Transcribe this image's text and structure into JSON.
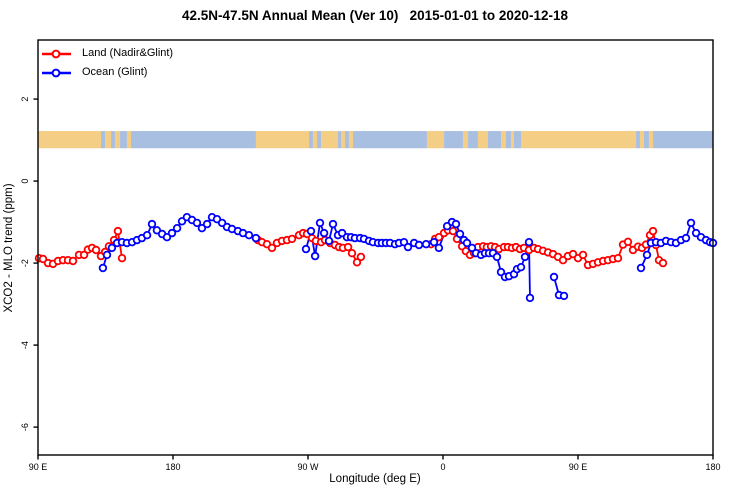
{
  "chart_data": {
    "type": "line",
    "title": "42.5N-47.5N Annual Mean (Ver 10)   2015-01-01 to 2020-12-18",
    "xlabel": "Longitude (deg E)",
    "ylabel": "XCO2 - MLO trend (ppm)",
    "x_axis": {
      "range_deg_along_axis": [
        0,
        450
      ],
      "ticks": [
        {
          "value": 0,
          "label": "90 E"
        },
        {
          "value": 90,
          "label": "180"
        },
        {
          "value": 180,
          "label": "90 W"
        },
        {
          "value": 270,
          "label": "0"
        },
        {
          "value": 360,
          "label": "90 E"
        },
        {
          "value": 450,
          "label": "180"
        }
      ]
    },
    "y_axis": {
      "range": [
        -6.68,
        3.44
      ],
      "ticks": [
        {
          "value": 2,
          "label": "2"
        },
        {
          "value": 0,
          "label": "0"
        },
        {
          "value": -2,
          "label": "-2"
        },
        {
          "value": -4,
          "label": "-4"
        },
        {
          "value": -6,
          "label": "-6"
        }
      ]
    },
    "axis_color": "#000000",
    "series": [
      {
        "name": "Land (Nadir&Glint)",
        "color": "#ff0000",
        "marker": "open-circle",
        "segments": [
          [
            [
              0.7,
              -1.88
            ],
            [
              3.3,
              -1.9
            ],
            [
              6.7,
              -2.0
            ],
            [
              10,
              -2.02
            ],
            [
              13.3,
              -1.95
            ],
            [
              16.7,
              -1.93
            ],
            [
              20,
              -1.93
            ],
            [
              23.3,
              -1.95
            ],
            [
              27.3,
              -1.8
            ],
            [
              30.7,
              -1.8
            ],
            [
              33.3,
              -1.67
            ],
            [
              36,
              -1.63
            ],
            [
              38.7,
              -1.68
            ],
            [
              42,
              -1.83
            ],
            [
              44.7,
              -1.73
            ],
            [
              47.3,
              -1.59
            ],
            [
              50.7,
              -1.44
            ],
            [
              53.3,
              -1.22
            ],
            [
              56,
              -1.88
            ]
          ],
          [
            [
              146.7,
              -1.44
            ],
            [
              149.3,
              -1.49
            ],
            [
              152.7,
              -1.54
            ],
            [
              156,
              -1.63
            ],
            [
              159.3,
              -1.51
            ],
            [
              162.7,
              -1.46
            ],
            [
              166,
              -1.44
            ],
            [
              169.3,
              -1.41
            ],
            [
              174,
              -1.32
            ],
            [
              176.7,
              -1.27
            ],
            [
              179.3,
              -1.29
            ],
            [
              182.7,
              -1.39
            ],
            [
              185.3,
              -1.46
            ],
            [
              188.7,
              -1.49
            ],
            [
              191.3,
              -1.44
            ],
            [
              194.7,
              -1.51
            ],
            [
              198,
              -1.56
            ],
            [
              200.7,
              -1.61
            ],
            [
              203.3,
              -1.63
            ],
            [
              206.7,
              -1.61
            ],
            [
              209.3,
              -1.76
            ],
            [
              212.7,
              -1.98
            ],
            [
              215.3,
              -1.85
            ]
          ],
          [
            [
              262,
              -1.54
            ],
            [
              264.7,
              -1.41
            ],
            [
              267.3,
              -1.37
            ],
            [
              270.7,
              -1.27
            ],
            [
              273.3,
              -1.2
            ],
            [
              276.7,
              -1.22
            ],
            [
              279.3,
              -1.41
            ],
            [
              282.7,
              -1.59
            ],
            [
              285.3,
              -1.71
            ],
            [
              288,
              -1.8
            ],
            [
              290.7,
              -1.76
            ],
            [
              293.3,
              -1.61
            ],
            [
              296.7,
              -1.59
            ],
            [
              299.3,
              -1.61
            ],
            [
              302,
              -1.59
            ],
            [
              304.7,
              -1.61
            ],
            [
              307.3,
              -1.66
            ],
            [
              310.7,
              -1.61
            ],
            [
              313.3,
              -1.61
            ],
            [
              316,
              -1.63
            ],
            [
              318.7,
              -1.61
            ],
            [
              321.3,
              -1.66
            ],
            [
              324,
              -1.63
            ],
            [
              327.3,
              -1.68
            ],
            [
              330.7,
              -1.63
            ],
            [
              333.3,
              -1.66
            ],
            [
              336.7,
              -1.7
            ],
            [
              340,
              -1.74
            ],
            [
              343.3,
              -1.78
            ],
            [
              346.7,
              -1.85
            ],
            [
              350,
              -1.93
            ],
            [
              353.3,
              -1.83
            ],
            [
              356.7,
              -1.78
            ],
            [
              360,
              -1.88
            ],
            [
              363.3,
              -1.8
            ],
            [
              366.7,
              -2.05
            ],
            [
              370,
              -2.02
            ],
            [
              373.3,
              -1.98
            ],
            [
              376.7,
              -1.95
            ],
            [
              380,
              -1.93
            ],
            [
              383.3,
              -1.9
            ],
            [
              386.7,
              -1.88
            ],
            [
              390,
              -1.55
            ],
            [
              393.3,
              -1.48
            ],
            [
              396.7,
              -1.68
            ],
            [
              400,
              -1.6
            ],
            [
              402.7,
              -1.63
            ],
            [
              405.3,
              -1.55
            ],
            [
              408,
              -1.32
            ],
            [
              410,
              -1.22
            ],
            [
              412,
              -1.56
            ],
            [
              414,
              -1.93
            ],
            [
              416.7,
              -2.0
            ]
          ]
        ]
      },
      {
        "name": "Ocean (Glint)",
        "color": "#0000ff",
        "marker": "open-circle",
        "segments": [
          [
            [
              43.3,
              -2.12
            ],
            [
              46,
              -1.8
            ],
            [
              49.3,
              -1.63
            ],
            [
              52.7,
              -1.51
            ],
            [
              56,
              -1.49
            ],
            [
              59.3,
              -1.51
            ],
            [
              62.7,
              -1.49
            ],
            [
              66,
              -1.44
            ],
            [
              69.3,
              -1.39
            ],
            [
              72.7,
              -1.32
            ],
            [
              76,
              -1.05
            ],
            [
              79.3,
              -1.2
            ],
            [
              82.7,
              -1.29
            ],
            [
              86,
              -1.37
            ],
            [
              89.3,
              -1.27
            ],
            [
              92.7,
              -1.15
            ],
            [
              96,
              -0.98
            ],
            [
              99.3,
              -0.88
            ],
            [
              102.7,
              -0.95
            ],
            [
              106,
              -1.02
            ],
            [
              109.3,
              -1.15
            ],
            [
              112.7,
              -1.05
            ],
            [
              116,
              -0.88
            ],
            [
              119.3,
              -0.93
            ],
            [
              122.7,
              -1.02
            ],
            [
              126,
              -1.12
            ],
            [
              129.3,
              -1.17
            ],
            [
              133.3,
              -1.22
            ],
            [
              136.7,
              -1.27
            ],
            [
              140.7,
              -1.32
            ],
            [
              145.3,
              -1.39
            ]
          ],
          [
            [
              178.7,
              -1.66
            ],
            [
              182,
              -1.22
            ],
            [
              184.7,
              -1.83
            ],
            [
              188,
              -1.02
            ],
            [
              190.7,
              -1.27
            ],
            [
              194,
              -1.46
            ],
            [
              196.7,
              -1.05
            ],
            [
              200,
              -1.32
            ],
            [
              202.7,
              -1.27
            ],
            [
              206,
              -1.37
            ],
            [
              208.7,
              -1.37
            ],
            [
              211.3,
              -1.39
            ],
            [
              214.7,
              -1.39
            ],
            [
              217.3,
              -1.41
            ],
            [
              220.7,
              -1.46
            ],
            [
              223.3,
              -1.49
            ],
            [
              226.7,
              -1.51
            ],
            [
              229.3,
              -1.51
            ],
            [
              232,
              -1.51
            ],
            [
              234.7,
              -1.51
            ],
            [
              238,
              -1.54
            ],
            [
              240.7,
              -1.51
            ],
            [
              244,
              -1.49
            ],
            [
              246.7,
              -1.61
            ],
            [
              250.7,
              -1.51
            ],
            [
              254,
              -1.56
            ],
            [
              258.7,
              -1.54
            ],
            [
              264,
              -1.49
            ],
            [
              267.3,
              -1.63
            ],
            [
              272.7,
              -1.1
            ],
            [
              276,
              -1.0
            ],
            [
              278.7,
              -1.05
            ],
            [
              281.3,
              -1.29
            ],
            [
              284,
              -1.44
            ],
            [
              286,
              -1.51
            ],
            [
              289.3,
              -1.63
            ],
            [
              292,
              -1.76
            ],
            [
              295.3,
              -1.8
            ],
            [
              298,
              -1.76
            ],
            [
              300.7,
              -1.76
            ],
            [
              303.3,
              -1.76
            ],
            [
              306,
              -1.85
            ],
            [
              308.7,
              -2.22
            ],
            [
              311.3,
              -2.34
            ],
            [
              314,
              -2.32
            ],
            [
              317.3,
              -2.27
            ],
            [
              319.3,
              -2.15
            ],
            [
              322,
              -2.1
            ],
            [
              324.7,
              -1.85
            ],
            [
              327.3,
              -1.49
            ],
            [
              328,
              -2.85
            ]
          ],
          [
            [
              344,
              -2.34
            ],
            [
              347.3,
              -2.78
            ],
            [
              350.7,
              -2.8
            ]
          ],
          [
            [
              402,
              -2.12
            ],
            [
              406,
              -1.8
            ],
            [
              408.7,
              -1.51
            ],
            [
              412,
              -1.49
            ],
            [
              415.3,
              -1.51
            ],
            [
              418.7,
              -1.46
            ],
            [
              422,
              -1.49
            ],
            [
              425.3,
              -1.51
            ],
            [
              428.7,
              -1.44
            ],
            [
              432,
              -1.39
            ],
            [
              435.3,
              -1.02
            ],
            [
              438.7,
              -1.27
            ],
            [
              442,
              -1.37
            ],
            [
              445.3,
              -1.44
            ],
            [
              448,
              -1.49
            ],
            [
              450,
              -1.51
            ]
          ]
        ]
      }
    ],
    "geography_band": {
      "description": "land/ocean strip for latitude band drawn across plot",
      "y_top": 1.22,
      "y_bottom": 0.8,
      "land_color": "#f5ce85",
      "water_color": "#a9bfe2",
      "segments": [
        {
          "from": 0,
          "to": 42,
          "type": "land"
        },
        {
          "from": 42,
          "to": 44.7,
          "type": "water"
        },
        {
          "from": 44.7,
          "to": 48.7,
          "type": "land"
        },
        {
          "from": 48.7,
          "to": 51.3,
          "type": "water"
        },
        {
          "from": 51.3,
          "to": 54.7,
          "type": "land"
        },
        {
          "from": 54.7,
          "to": 59.3,
          "type": "water"
        },
        {
          "from": 59.3,
          "to": 62,
          "type": "land"
        },
        {
          "from": 62,
          "to": 145.3,
          "type": "water"
        },
        {
          "from": 145.3,
          "to": 180.7,
          "type": "land"
        },
        {
          "from": 180.7,
          "to": 183.3,
          "type": "water"
        },
        {
          "from": 183.3,
          "to": 186,
          "type": "land"
        },
        {
          "from": 186,
          "to": 188.7,
          "type": "water"
        },
        {
          "from": 188.7,
          "to": 200,
          "type": "land"
        },
        {
          "from": 200,
          "to": 202,
          "type": "water"
        },
        {
          "from": 202,
          "to": 204.7,
          "type": "land"
        },
        {
          "from": 204.7,
          "to": 207.3,
          "type": "water"
        },
        {
          "from": 207.3,
          "to": 210,
          "type": "land"
        },
        {
          "from": 210,
          "to": 259.3,
          "type": "water"
        },
        {
          "from": 259.3,
          "to": 270.7,
          "type": "land"
        },
        {
          "from": 270.7,
          "to": 283.3,
          "type": "water"
        },
        {
          "from": 283.3,
          "to": 286.7,
          "type": "land"
        },
        {
          "from": 286.7,
          "to": 293.3,
          "type": "water"
        },
        {
          "from": 293.3,
          "to": 300,
          "type": "land"
        },
        {
          "from": 300,
          "to": 308.7,
          "type": "water"
        },
        {
          "from": 308.7,
          "to": 312,
          "type": "land"
        },
        {
          "from": 312,
          "to": 315.3,
          "type": "water"
        },
        {
          "from": 315.3,
          "to": 317.3,
          "type": "land"
        },
        {
          "from": 317.3,
          "to": 322,
          "type": "water"
        },
        {
          "from": 322,
          "to": 398.7,
          "type": "land"
        },
        {
          "from": 398.7,
          "to": 401.3,
          "type": "water"
        },
        {
          "from": 401.3,
          "to": 404,
          "type": "land"
        },
        {
          "from": 404,
          "to": 407.3,
          "type": "water"
        },
        {
          "from": 407.3,
          "to": 410,
          "type": "land"
        },
        {
          "from": 410,
          "to": 450,
          "type": "water"
        }
      ]
    },
    "legend": {
      "position": "top-left",
      "items": [
        {
          "label": "Land (Nadir&Glint)",
          "color": "#ff0000"
        },
        {
          "label": "Ocean (Glint)",
          "color": "#0000ff"
        }
      ]
    }
  }
}
